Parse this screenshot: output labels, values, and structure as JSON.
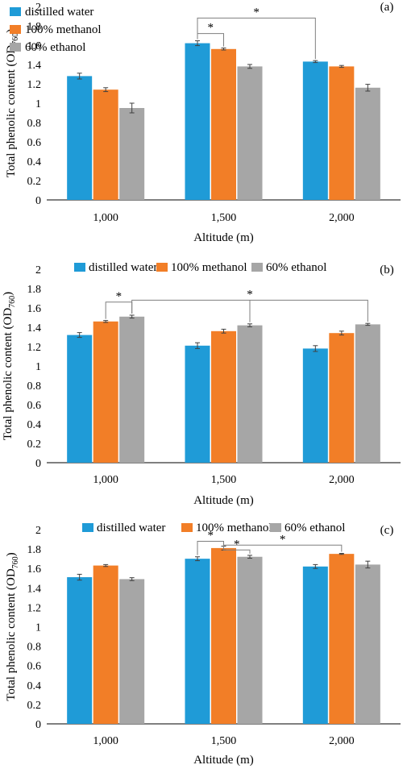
{
  "figure": {
    "colors": {
      "distilled water": "#1F9BD7",
      "100% methanol": "#F27E27",
      "60% ethanol": "#A6A6A6"
    }
  },
  "chart_data": [
    {
      "type": "bar",
      "panel_label": "(a)",
      "xlabel": "Altitude (m)",
      "ylabel": "Total phenolic content (OD",
      "ylabel_sub": "760",
      "ylabel_close": ")",
      "ylim": [
        0,
        2
      ],
      "yticks": [
        "0",
        "0.2",
        "0.4",
        "0.6",
        "0.8",
        "1",
        "1.2",
        "1.4",
        "1.6",
        "1.8",
        "2"
      ],
      "categories": [
        "1,000",
        "1,500",
        "2,000"
      ],
      "legend_position": "top-left",
      "series": [
        {
          "name": "distilled water",
          "values": [
            1.28,
            1.62,
            1.43
          ],
          "errors": [
            0.03,
            0.025,
            0.01
          ]
        },
        {
          "name": "100% methanol",
          "values": [
            1.14,
            1.56,
            1.38
          ],
          "errors": [
            0.02,
            0.01,
            0.01
          ]
        },
        {
          "name": "60% ethanol",
          "values": [
            0.95,
            1.38,
            1.16
          ],
          "errors": [
            0.05,
            0.02,
            0.035
          ]
        }
      ],
      "significance": [
        {
          "from": [
            1,
            0
          ],
          "to": [
            1,
            1
          ],
          "y": 1.72,
          "label": "*"
        },
        {
          "from": [
            1,
            0
          ],
          "to": [
            2,
            0
          ],
          "y": 1.88,
          "label": "*"
        }
      ]
    },
    {
      "type": "bar",
      "panel_label": "(b)",
      "xlabel": "Altitude (m)",
      "ylabel": "Total phenolic content (OD",
      "ylabel_sub": "760",
      "ylabel_close": ")",
      "ylim": [
        0,
        2
      ],
      "yticks": [
        "0",
        "0.2",
        "0.4",
        "0.6",
        "0.8",
        "1",
        "1.2",
        "1.4",
        "1.6",
        "1.8",
        "2"
      ],
      "categories": [
        "1,000",
        "1,500",
        "2,000"
      ],
      "legend_position": "top-center",
      "series": [
        {
          "name": "distilled water",
          "values": [
            1.32,
            1.21,
            1.18
          ],
          "errors": [
            0.025,
            0.03,
            0.03
          ]
        },
        {
          "name": "100% methanol",
          "values": [
            1.46,
            1.36,
            1.34
          ],
          "errors": [
            0.01,
            0.02,
            0.02
          ]
        },
        {
          "name": "60% ethanol",
          "values": [
            1.51,
            1.42,
            1.43
          ],
          "errors": [
            0.015,
            0.015,
            0.01
          ]
        }
      ],
      "significance": [
        {
          "from": [
            0,
            1
          ],
          "to": [
            0,
            2
          ],
          "y": 1.66,
          "label": "*"
        },
        {
          "from": [
            0,
            2
          ],
          "to": [
            2,
            2
          ],
          "y": 1.68,
          "label": "*",
          "mid_series": [
            1,
            2
          ]
        }
      ]
    },
    {
      "type": "bar",
      "panel_label": "(c)",
      "xlabel": "Altitude (m)",
      "ylabel": "Total phenolic content (OD",
      "ylabel_sub": "760",
      "ylabel_close": ")",
      "ylim": [
        0,
        2
      ],
      "yticks": [
        "0",
        "0.2",
        "0.4",
        "0.6",
        "0.8",
        "1",
        "1.2",
        "1.4",
        "1.6",
        "1.8",
        "2"
      ],
      "categories": [
        "1,000",
        "1,500",
        "2,000"
      ],
      "legend_position": "top-center",
      "series": [
        {
          "name": "distilled water",
          "values": [
            1.51,
            1.7,
            1.62
          ],
          "errors": [
            0.03,
            0.02,
            0.02
          ]
        },
        {
          "name": "100% methanol",
          "values": [
            1.63,
            1.81,
            1.75
          ],
          "errors": [
            0.01,
            0.02,
            0.005
          ]
        },
        {
          "name": "60% ethanol",
          "values": [
            1.49,
            1.72,
            1.64
          ],
          "errors": [
            0.015,
            0.015,
            0.035
          ]
        }
      ],
      "significance": [
        {
          "from": [
            1,
            0
          ],
          "to": [
            1,
            1
          ],
          "y": 1.88,
          "label": "*"
        },
        {
          "from": [
            1,
            1
          ],
          "to": [
            1,
            2
          ],
          "y": 1.79,
          "label": "*"
        },
        {
          "from": [
            1,
            1
          ],
          "to": [
            2,
            1
          ],
          "y": 1.84,
          "label": "*"
        }
      ]
    }
  ]
}
